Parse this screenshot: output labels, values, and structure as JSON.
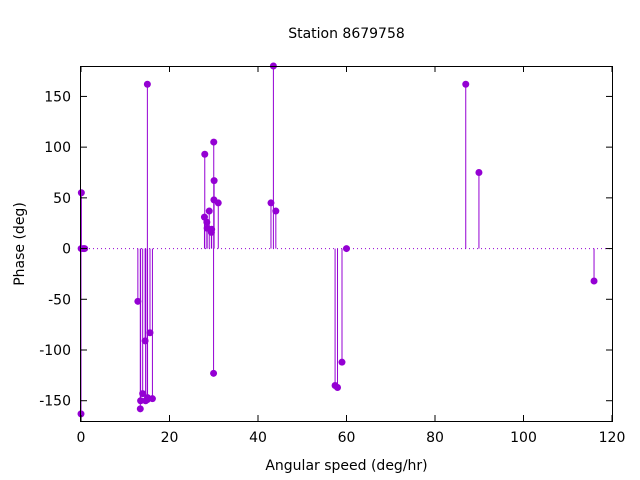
{
  "chart_data": {
    "type": "stem",
    "title": "Station 8679758",
    "xlabel": "Angular speed (deg/hr)",
    "ylabel": "Phase (deg)",
    "xlim": [
      0,
      120
    ],
    "ylim": [
      -170,
      180
    ],
    "xticks": [
      0,
      20,
      40,
      60,
      80,
      100,
      120
    ],
    "yticks": [
      -150,
      -100,
      -50,
      0,
      50,
      100,
      150
    ],
    "grid": false,
    "legend": "none",
    "color": "#9400d3",
    "series": [
      {
        "x": [
          0.0,
          0.04,
          0.08,
          0.54,
          0.82,
          12.85,
          13.4,
          13.47,
          13.94,
          14.49,
          14.6,
          14.96,
          15.0,
          15.04,
          15.59,
          16.14,
          27.9,
          27.97,
          28.44,
          28.51,
          28.98,
          29.46,
          29.53,
          29.96,
          30.0,
          30.04,
          30.08,
          31.02,
          42.93,
          43.48,
          44.03,
          57.42,
          57.97,
          58.98,
          60.0,
          86.95,
          89.93,
          115.94
        ],
        "y": [
          -163,
          0,
          55,
          0,
          0,
          -52,
          -158,
          -150,
          -143,
          -91,
          -150,
          -149,
          162,
          -147,
          -83,
          -148,
          31,
          93,
          26,
          20,
          37,
          16,
          19,
          -123,
          105,
          48,
          67,
          45,
          45,
          180,
          37,
          -135,
          -137,
          -112,
          0,
          162,
          75,
          -32
        ]
      }
    ]
  }
}
